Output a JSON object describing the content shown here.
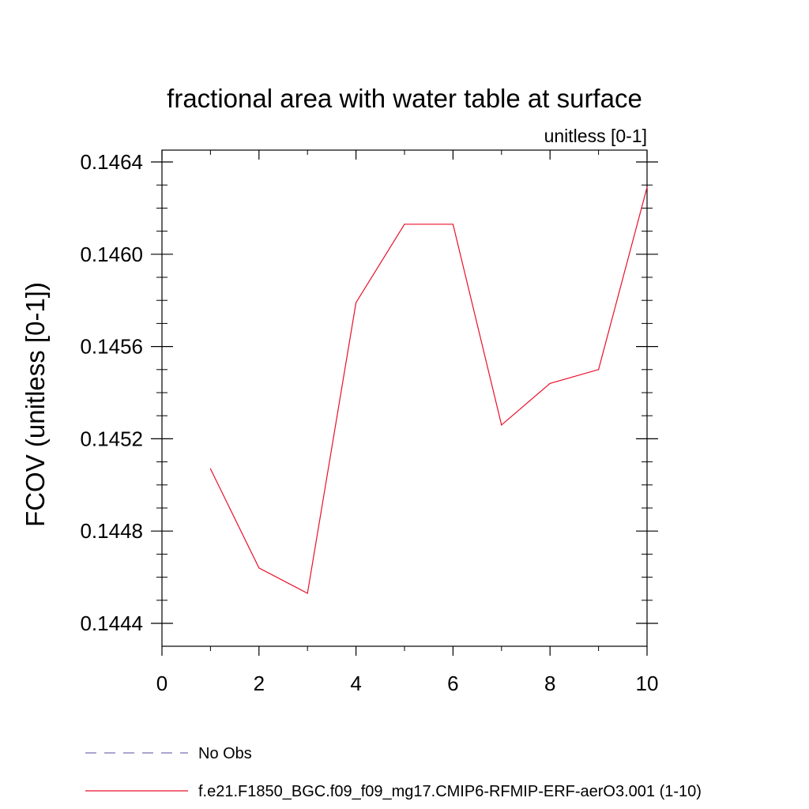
{
  "chart_data": {
    "type": "line",
    "title": "fractional area with water table at surface",
    "subtitle": "unitless [0-1]",
    "ylabel": "FCOV  (unitless [0-1])",
    "xlabel": "",
    "xlim": [
      0,
      10
    ],
    "ylim": [
      0.1443,
      0.14645
    ],
    "x_ticks": [
      0,
      2,
      4,
      6,
      8,
      10
    ],
    "x_tick_labels": [
      "0",
      "2",
      "4",
      "6",
      "8",
      "10"
    ],
    "y_ticks": [
      0.1444,
      0.1448,
      0.1452,
      0.1456,
      0.146,
      0.1464
    ],
    "y_tick_labels": [
      "0.1444",
      "0.1448",
      "0.1452",
      "0.1456",
      "0.1460",
      "0.1464"
    ],
    "grid": false,
    "legend_position": "bottom",
    "series": [
      {
        "name": "No Obs",
        "color": "#7b6fb0",
        "dash": "dashed",
        "x": [],
        "values": []
      },
      {
        "name": "f.e21.F1850_BGC.f09_f09_mg17.CMIP6-RFMIP-ERF-aerO3.001 (1-10)",
        "color": "#e8102a",
        "dash": "solid",
        "x": [
          1,
          2,
          3,
          4,
          5,
          6,
          7,
          8,
          9,
          10
        ],
        "values": [
          0.14507,
          0.14464,
          0.14453,
          0.14579,
          0.14613,
          0.14613,
          0.14526,
          0.14544,
          0.1455,
          0.14629
        ]
      }
    ]
  }
}
